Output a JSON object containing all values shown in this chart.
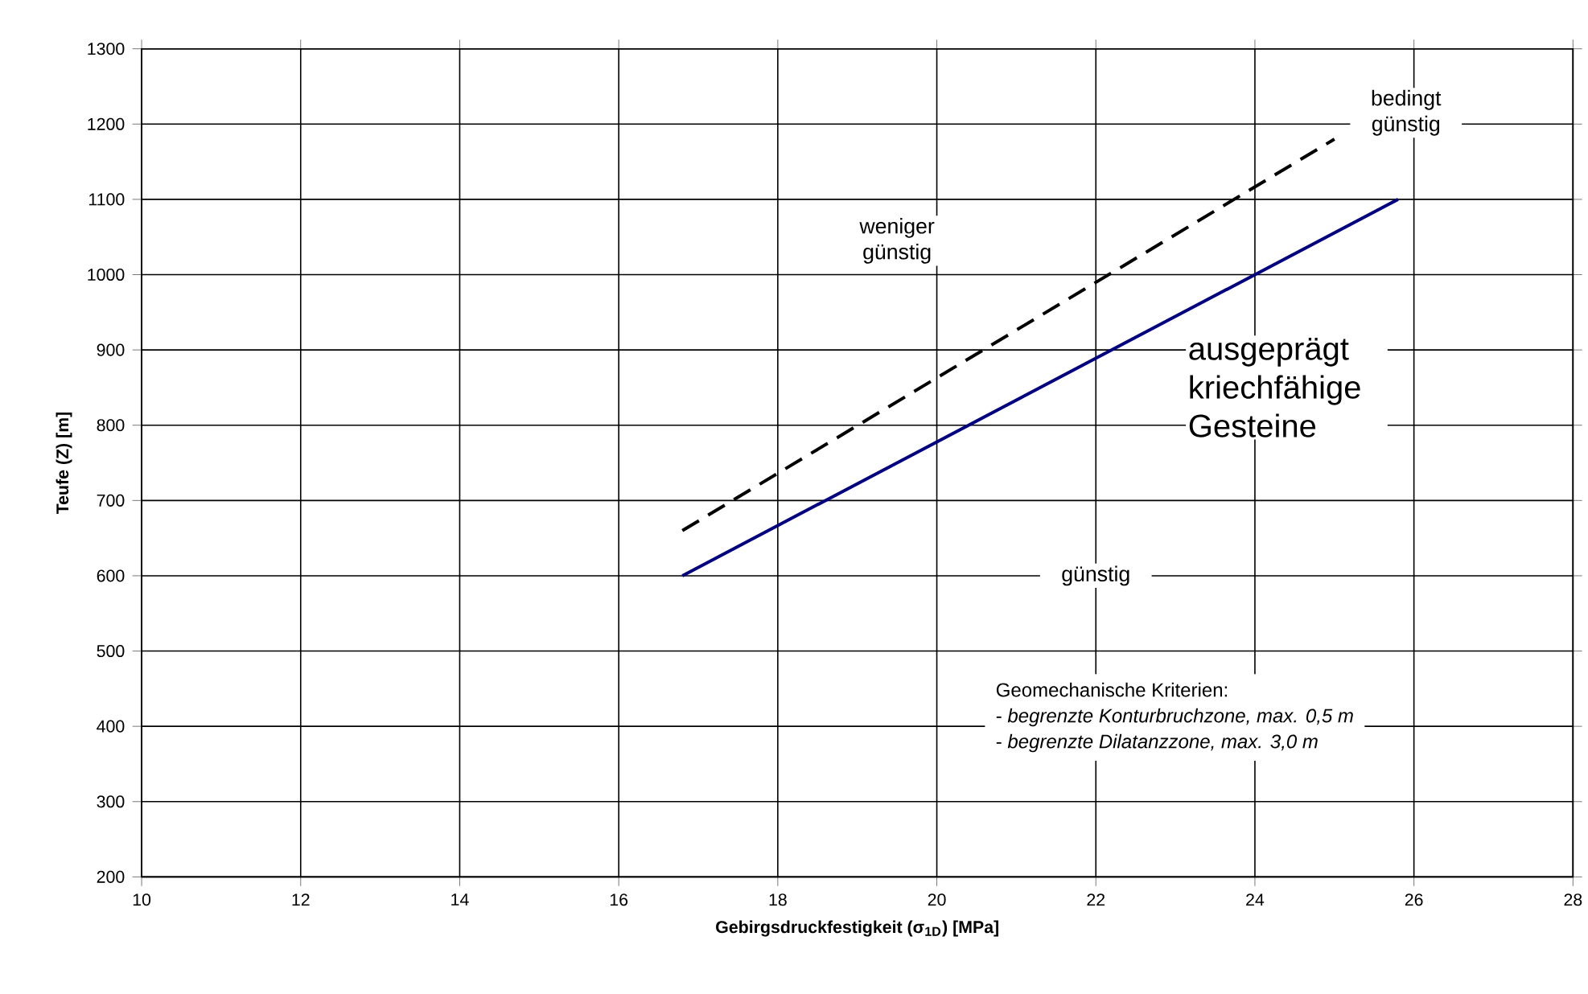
{
  "chart_data": {
    "type": "line",
    "xlabel": "Gebirgsdruckfestigkeit (σ$_{1D}$) [MPa]",
    "ylabel": "Teufe (Z) [m]",
    "xlim": [
      10,
      28
    ],
    "xticks": [
      10,
      12,
      14,
      16,
      18,
      20,
      22,
      24,
      26,
      28
    ],
    "ylim": [
      200,
      1300
    ],
    "yticks": [
      200,
      300,
      400,
      500,
      600,
      700,
      800,
      900,
      1000,
      1100,
      1200,
      1300
    ],
    "grid": true,
    "marker": "none",
    "series": [
      {
        "color": "#000080",
        "line_style": "solid",
        "x": [
          16.8,
          25.8
        ],
        "values": [
          600,
          1100
        ]
      },
      {
        "color": "#000000",
        "line_style": "dashed",
        "x": [
          16.8,
          25.0
        ],
        "values": [
          660,
          1180
        ]
      }
    ],
    "annotations": [
      "weniger günstig",
      "bedingt günstig",
      "ausgeprägt kriechfähige Gesteine",
      "günstig",
      "Geomechanische Kriterien:",
      "- *begrenzte Konturbruchzone, max. 0,5 m*",
      "- *begrenzte Dilatanzzone, max. 3,0 m*"
    ]
  }
}
